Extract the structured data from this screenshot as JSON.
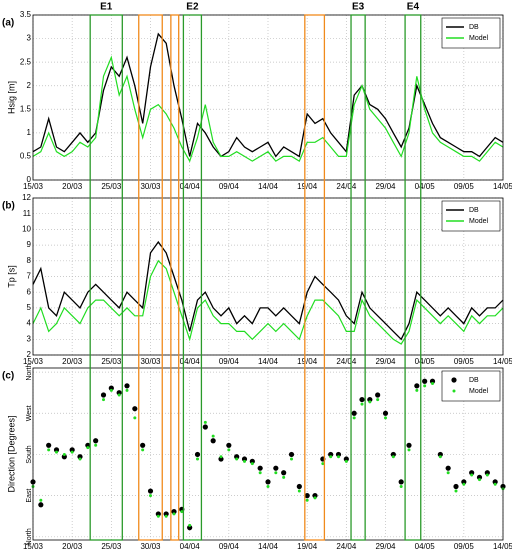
{
  "chart_data": [
    {
      "type": "line",
      "panel_label": "(a)",
      "ylabel": "Hsig [m]",
      "x": [
        0,
        1,
        2,
        3,
        4,
        5,
        6,
        7,
        8,
        9,
        10,
        11,
        12,
        13,
        14,
        15,
        16,
        17,
        18,
        19,
        20,
        21,
        22,
        23,
        24,
        25,
        26,
        27,
        28,
        29,
        30,
        31,
        32,
        33,
        34,
        35,
        36,
        37,
        38,
        39,
        40,
        41,
        42,
        43,
        44,
        45,
        46,
        47,
        48,
        49,
        50,
        51,
        52,
        53,
        54,
        55,
        56,
        57,
        58,
        59,
        60
      ],
      "series": [
        {
          "name": "DB",
          "color": "#000000",
          "values": [
            0.6,
            0.7,
            1.3,
            0.7,
            0.6,
            0.8,
            1.0,
            0.8,
            1.0,
            1.9,
            2.4,
            2.2,
            2.6,
            2.0,
            1.2,
            2.4,
            3.1,
            2.9,
            2.0,
            1.3,
            0.5,
            1.2,
            1.0,
            0.7,
            0.5,
            0.6,
            0.9,
            0.7,
            0.6,
            0.7,
            0.8,
            0.5,
            0.7,
            0.6,
            0.5,
            1.4,
            1.2,
            1.3,
            1.0,
            0.8,
            0.6,
            1.8,
            2.0,
            1.6,
            1.5,
            1.3,
            1.0,
            0.7,
            1.1,
            2.0,
            1.6,
            1.2,
            0.9,
            0.8,
            0.7,
            0.6,
            0.6,
            0.5,
            0.7,
            0.9,
            0.8
          ]
        },
        {
          "name": "Model",
          "color": "#22dd22",
          "values": [
            0.5,
            0.6,
            1.0,
            0.6,
            0.5,
            0.6,
            0.8,
            0.7,
            0.9,
            2.2,
            2.6,
            1.8,
            2.2,
            1.5,
            0.9,
            1.5,
            1.6,
            1.4,
            1.1,
            0.7,
            0.4,
            0.9,
            1.6,
            0.8,
            0.5,
            0.5,
            0.6,
            0.5,
            0.4,
            0.5,
            0.6,
            0.4,
            0.5,
            0.5,
            0.4,
            0.8,
            0.8,
            0.9,
            0.7,
            0.5,
            0.5,
            1.6,
            2.0,
            1.5,
            1.3,
            1.1,
            0.8,
            0.5,
            1.0,
            2.2,
            1.5,
            1.0,
            0.8,
            0.7,
            0.6,
            0.5,
            0.5,
            0.4,
            0.6,
            0.8,
            0.7
          ]
        }
      ],
      "xlim": [
        0,
        60
      ],
      "xticks": [
        {
          "value": 0,
          "label": "15/03"
        },
        {
          "value": 5,
          "label": "20/03"
        },
        {
          "value": 10,
          "label": "25/03"
        },
        {
          "value": 15,
          "label": "30/03"
        },
        {
          "value": 20,
          "label": "04/04"
        },
        {
          "value": 25,
          "label": "09/04"
        },
        {
          "value": 30,
          "label": "14/04"
        },
        {
          "value": 35,
          "label": "19/04"
        },
        {
          "value": 40,
          "label": "24/04"
        },
        {
          "value": 45,
          "label": "29/04"
        },
        {
          "value": 50,
          "label": "04/05"
        },
        {
          "value": 55,
          "label": "09/05"
        },
        {
          "value": 60,
          "label": "14/05"
        }
      ],
      "ylim": [
        0,
        3.5
      ],
      "yticks": [
        0,
        0.5,
        1,
        1.5,
        2,
        2.5,
        3,
        3.5
      ],
      "grid": true,
      "legend": "top-right"
    },
    {
      "type": "line",
      "panel_label": "(b)",
      "ylabel": "Tp [s]",
      "x": [
        0,
        1,
        2,
        3,
        4,
        5,
        6,
        7,
        8,
        9,
        10,
        11,
        12,
        13,
        14,
        15,
        16,
        17,
        18,
        19,
        20,
        21,
        22,
        23,
        24,
        25,
        26,
        27,
        28,
        29,
        30,
        31,
        32,
        33,
        34,
        35,
        36,
        37,
        38,
        39,
        40,
        41,
        42,
        43,
        44,
        45,
        46,
        47,
        48,
        49,
        50,
        51,
        52,
        53,
        54,
        55,
        56,
        57,
        58,
        59,
        60
      ],
      "series": [
        {
          "name": "DB",
          "color": "#000000",
          "values": [
            6.5,
            7.5,
            5,
            4.5,
            6,
            5.5,
            5,
            6,
            6.5,
            6,
            5.5,
            5,
            6,
            5.5,
            5,
            8.5,
            9.2,
            8.5,
            7,
            5.5,
            3.5,
            5.5,
            6,
            5,
            4.5,
            5,
            4,
            4.5,
            4,
            5,
            5,
            4.5,
            5,
            4.5,
            4,
            6,
            7,
            6.5,
            6,
            5.5,
            4.5,
            4,
            6,
            5,
            4.5,
            4,
            3.5,
            3,
            4,
            6,
            5.5,
            5,
            4.5,
            5,
            4.5,
            4,
            5,
            4.5,
            5,
            5,
            5.5
          ]
        },
        {
          "name": "Model",
          "color": "#22dd22",
          "values": [
            4,
            5,
            3.5,
            4,
            5,
            4.5,
            4,
            5,
            5.5,
            5.5,
            5,
            4.5,
            5,
            4.5,
            4.5,
            7,
            8,
            7.5,
            6,
            4.5,
            3,
            5,
            5.5,
            4.5,
            4,
            4,
            3.5,
            3.5,
            3,
            3.5,
            4,
            3.5,
            4,
            3.5,
            3,
            4.5,
            5.5,
            5.5,
            5,
            4.5,
            3.5,
            3.5,
            5.5,
            4.5,
            4,
            3.5,
            3,
            2.7,
            3.5,
            5.5,
            5,
            4.5,
            4,
            4.5,
            4,
            3.5,
            4.5,
            4,
            4.5,
            4.5,
            5
          ]
        }
      ],
      "xlim": [
        0,
        60
      ],
      "xticks": [
        {
          "value": 0,
          "label": "15/03"
        },
        {
          "value": 5,
          "label": "20/03"
        },
        {
          "value": 10,
          "label": "25/03"
        },
        {
          "value": 15,
          "label": "30/03"
        },
        {
          "value": 20,
          "label": "04/04"
        },
        {
          "value": 25,
          "label": "09/04"
        },
        {
          "value": 30,
          "label": "14/04"
        },
        {
          "value": 35,
          "label": "19/04"
        },
        {
          "value": 40,
          "label": "24/04"
        },
        {
          "value": 45,
          "label": "29/04"
        },
        {
          "value": 50,
          "label": "04/05"
        },
        {
          "value": 55,
          "label": "09/05"
        },
        {
          "value": 60,
          "label": "14/05"
        }
      ],
      "ylim": [
        2,
        12
      ],
      "yticks": [
        2,
        3,
        4,
        5,
        6,
        7,
        8,
        9,
        10,
        11,
        12
      ],
      "grid": true,
      "legend": "top-right"
    },
    {
      "type": "scatter",
      "panel_label": "(c)",
      "ylabel": "Direction [Degrees]",
      "x": [
        0,
        1,
        2,
        3,
        4,
        5,
        6,
        7,
        8,
        9,
        10,
        11,
        12,
        13,
        14,
        15,
        16,
        17,
        18,
        19,
        20,
        21,
        22,
        23,
        24,
        25,
        26,
        27,
        28,
        29,
        30,
        31,
        32,
        33,
        34,
        35,
        36,
        37,
        38,
        39,
        40,
        41,
        42,
        43,
        44,
        45,
        46,
        47,
        48,
        49,
        50,
        51,
        52,
        53,
        54,
        55,
        56,
        57,
        58,
        59,
        60
      ],
      "series": [
        {
          "name": "DB",
          "color": "#000000",
          "values": [
            120,
            70,
            200,
            190,
            175,
            190,
            175,
            200,
            210,
            310,
            325,
            315,
            330,
            280,
            200,
            100,
            50,
            50,
            55,
            60,
            20,
            180,
            240,
            210,
            170,
            200,
            175,
            170,
            165,
            150,
            120,
            150,
            140,
            180,
            110,
            90,
            90,
            170,
            180,
            180,
            170,
            270,
            300,
            300,
            310,
            270,
            180,
            120,
            200,
            330,
            340,
            340,
            180,
            150,
            110,
            120,
            140,
            130,
            140,
            120,
            110
          ]
        },
        {
          "name": "Model",
          "color": "#22dd22",
          "values": [
            110,
            80,
            190,
            185,
            180,
            185,
            170,
            195,
            200,
            300,
            320,
            310,
            320,
            260,
            190,
            90,
            45,
            45,
            50,
            55,
            25,
            170,
            250,
            220,
            175,
            190,
            170,
            165,
            160,
            140,
            110,
            140,
            130,
            170,
            100,
            80,
            85,
            160,
            175,
            175,
            165,
            260,
            290,
            295,
            300,
            260,
            175,
            110,
            190,
            320,
            330,
            335,
            175,
            140,
            100,
            115,
            135,
            125,
            135,
            115,
            105
          ]
        }
      ],
      "xlim": [
        0,
        60
      ],
      "xticks": [
        {
          "value": 0,
          "label": "15/03"
        },
        {
          "value": 5,
          "label": "20/03"
        },
        {
          "value": 10,
          "label": "25/03"
        },
        {
          "value": 15,
          "label": "30/03"
        },
        {
          "value": 20,
          "label": "04/04"
        },
        {
          "value": 25,
          "label": "09/04"
        },
        {
          "value": 30,
          "label": "14/04"
        },
        {
          "value": 35,
          "label": "19/04"
        },
        {
          "value": 40,
          "label": "24/04"
        },
        {
          "value": 45,
          "label": "29/04"
        },
        {
          "value": 50,
          "label": "04/05"
        },
        {
          "value": 55,
          "label": "09/05"
        },
        {
          "value": 60,
          "label": "14/05"
        }
      ],
      "ylim": [
        -7,
        369
      ],
      "yticks": [
        {
          "value": 0,
          "label": "North"
        },
        {
          "value": 90,
          "label": "East"
        },
        {
          "value": 180,
          "label": "South"
        },
        {
          "value": 270,
          "label": "West"
        },
        {
          "value": 360,
          "label": "North"
        }
      ],
      "grid": true,
      "legend": "top-right"
    }
  ],
  "highlights": [
    {
      "label": "E1",
      "color": "#2a9a2a",
      "x": [
        7.3,
        11.4
      ]
    },
    {
      "color": "#f08a1c",
      "x": [
        13.5,
        16.5
      ]
    },
    {
      "color": "#f08a1c",
      "x": [
        17.6,
        18.6
      ]
    },
    {
      "label": "E2",
      "color": "#2a9a2a",
      "x": [
        19.2,
        21.5
      ]
    },
    {
      "color": "#f08a1c",
      "x": [
        34.7,
        37.2
      ]
    },
    {
      "label": "E3",
      "color": "#2a9a2a",
      "x": [
        40.6,
        42.4
      ]
    },
    {
      "label": "E4",
      "color": "#2a9a2a",
      "x": [
        47.5,
        49.5
      ]
    }
  ]
}
